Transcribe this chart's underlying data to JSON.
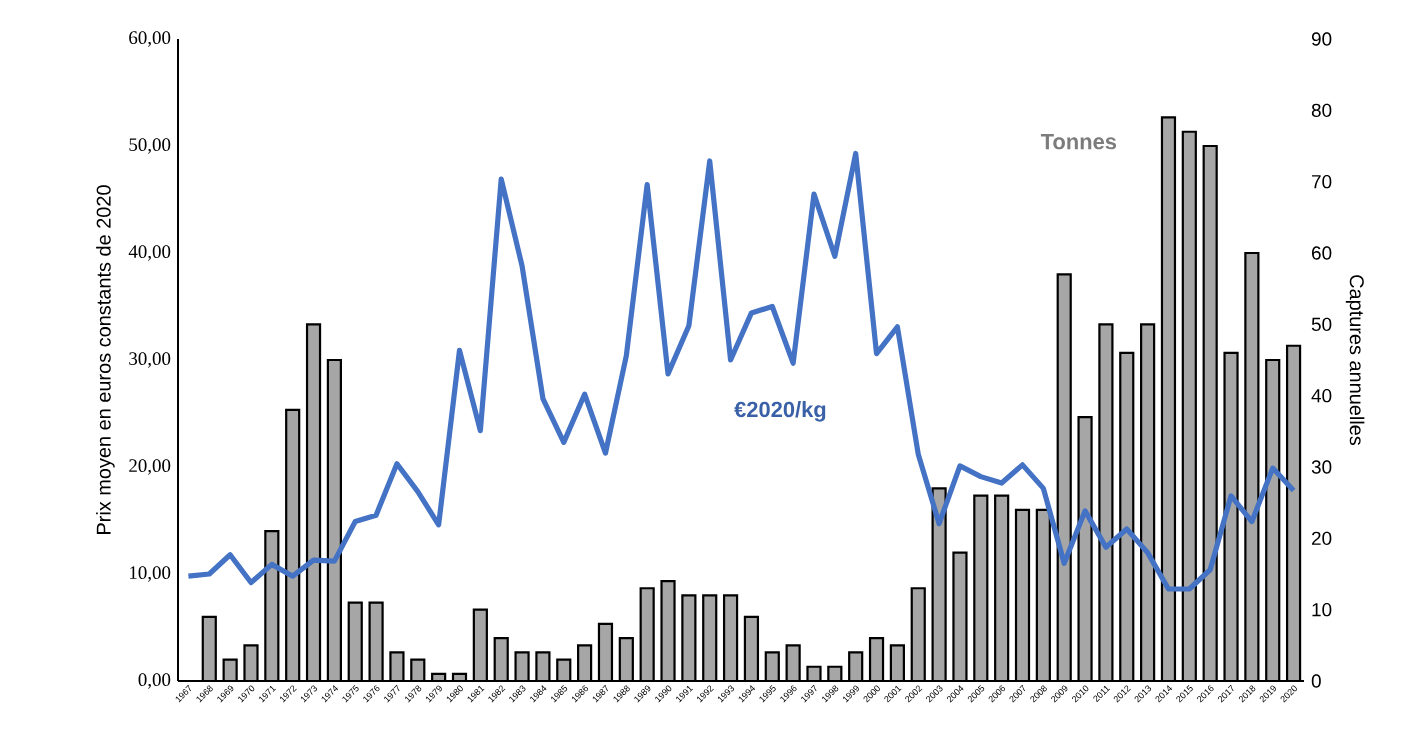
{
  "chart_data": {
    "type": "bar",
    "ylabel": "Prix moyen en euros constants de 2020",
    "y2label": "Captures annuelles",
    "categories": [
      "1967",
      "1968",
      "1969",
      "1970",
      "1971",
      "1972",
      "1973",
      "1974",
      "1975",
      "1976",
      "1977",
      "1978",
      "1979",
      "1980",
      "1981",
      "1982",
      "1983",
      "1984",
      "1985",
      "1986",
      "1987",
      "1988",
      "1989",
      "1990",
      "1991",
      "1992",
      "1993",
      "1994",
      "1995",
      "1996",
      "1997",
      "1998",
      "1999",
      "2000",
      "2001",
      "2002",
      "2003",
      "2004",
      "2005",
      "2006",
      "2007",
      "2008",
      "2009",
      "2010",
      "2011",
      "2012",
      "2013",
      "2014",
      "2015",
      "2016",
      "2017",
      "2018",
      "2019",
      "2020"
    ],
    "series": [
      {
        "name": "Tonnes",
        "axis": "y2",
        "color": "#a6a6a6",
        "values": [
          null,
          9,
          3,
          5,
          21,
          38,
          50,
          45,
          11,
          11,
          4,
          3,
          1,
          1,
          10,
          6,
          4,
          4,
          3,
          5,
          8,
          6,
          13,
          14,
          12,
          12,
          12,
          9,
          4,
          5,
          2,
          2,
          4,
          6,
          5,
          13,
          27,
          18,
          26,
          26,
          24,
          24,
          57,
          37,
          50,
          46,
          50,
          79,
          77,
          75,
          46,
          60,
          45,
          47
        ]
      },
      {
        "name": "€2020/kg",
        "type": "line",
        "axis": "y",
        "color": "#4472c4",
        "values": [
          9.8,
          10.0,
          11.8,
          9.2,
          10.9,
          9.8,
          11.3,
          11.2,
          14.9,
          15.5,
          20.3,
          17.7,
          14.6,
          30.9,
          23.4,
          46.9,
          38.8,
          26.4,
          22.3,
          26.8,
          21.3,
          30.4,
          46.4,
          28.7,
          33.2,
          48.6,
          30.0,
          34.4,
          35.0,
          29.7,
          45.5,
          39.7,
          49.3,
          30.6,
          33.1,
          21.2,
          14.7,
          20.1,
          19.1,
          18.5,
          20.2,
          18.0,
          11.0,
          15.9,
          12.5,
          14.2,
          12.0,
          8.6,
          8.6,
          10.4,
          17.3,
          14.9,
          19.9,
          17.8
        ]
      }
    ],
    "ylim": [
      0,
      60
    ],
    "yticks": [
      {
        "value": 0,
        "label": "0,00"
      },
      {
        "value": 10,
        "label": "10,00"
      },
      {
        "value": 20,
        "label": "20,00"
      },
      {
        "value": 30,
        "label": "30,00"
      },
      {
        "value": 40,
        "label": "40,00"
      },
      {
        "value": 50,
        "label": "50,00"
      },
      {
        "value": 60,
        "label": "60,00"
      }
    ],
    "y2lim": [
      0,
      90
    ],
    "y2ticks": [
      0,
      10,
      20,
      30,
      40,
      50,
      60,
      70,
      80,
      90
    ],
    "legend": false,
    "grid": false
  }
}
